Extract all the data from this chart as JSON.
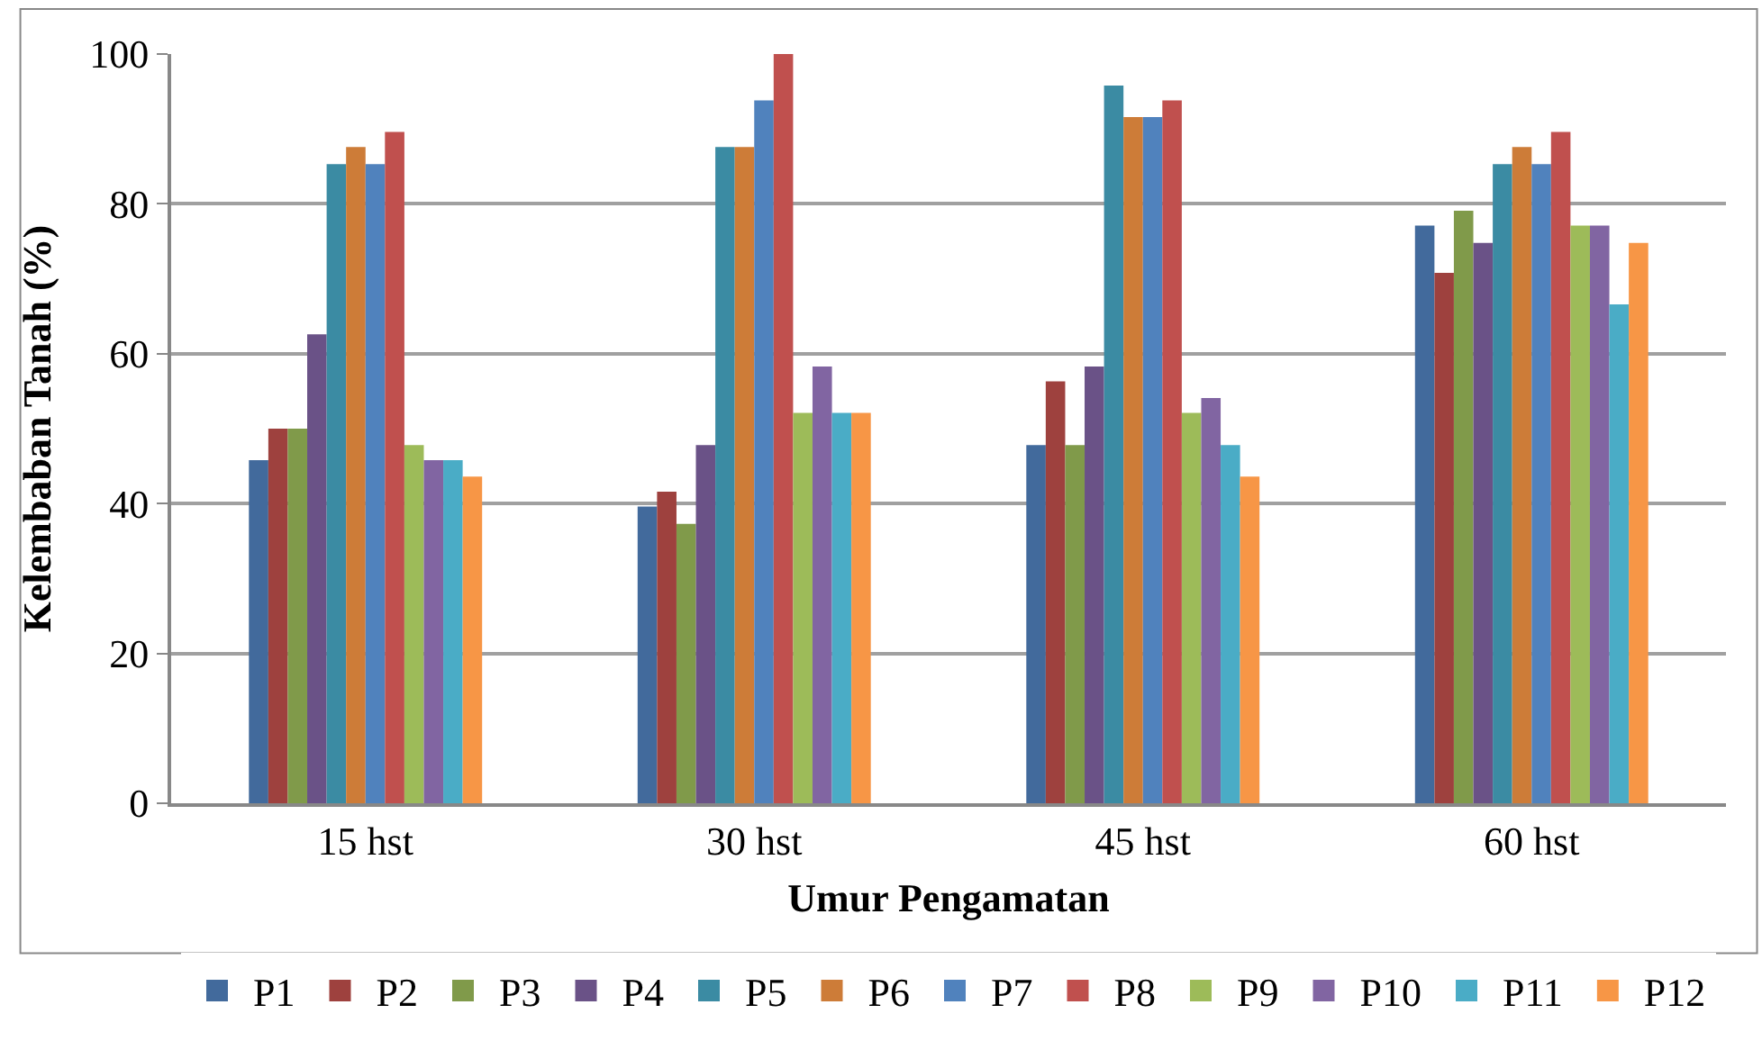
{
  "chart_data": {
    "type": "bar",
    "xlabel": "Umur Pengamatan",
    "ylabel": "Kelembaban Tanah (%)",
    "categories": [
      "15 hst",
      "30 hst",
      "45 hst",
      "60 hst"
    ],
    "series": [
      {
        "name": "P1",
        "color": "#426a9c",
        "values": [
          45.8,
          39.6,
          47.8,
          77.1
        ]
      },
      {
        "name": "P2",
        "color": "#9e413e",
        "values": [
          50,
          41.6,
          56.3,
          70.8
        ]
      },
      {
        "name": "P3",
        "color": "#809a4a",
        "values": [
          50,
          37.3,
          47.8,
          79.1
        ]
      },
      {
        "name": "P4",
        "color": "#6a5287",
        "values": [
          62.6,
          47.8,
          58.3,
          74.8
        ]
      },
      {
        "name": "P5",
        "color": "#3b8ba3",
        "values": [
          85.3,
          87.6,
          95.8,
          85.3
        ]
      },
      {
        "name": "P6",
        "color": "#cd7c38",
        "values": [
          87.6,
          87.6,
          91.6,
          87.6
        ]
      },
      {
        "name": "P7",
        "color": "#5082bd",
        "values": [
          85.3,
          93.8,
          91.6,
          85.3
        ]
      },
      {
        "name": "P8",
        "color": "#c0504e",
        "values": [
          89.6,
          100,
          93.8,
          89.6
        ]
      },
      {
        "name": "P9",
        "color": "#9dbb59",
        "values": [
          47.8,
          52.1,
          52.1,
          77.1
        ]
      },
      {
        "name": "P10",
        "color": "#8165a2",
        "values": [
          45.8,
          58.3,
          54.1,
          77.1
        ]
      },
      {
        "name": "P11",
        "color": "#4aacc6",
        "values": [
          45.8,
          52.1,
          47.8,
          66.6
        ]
      },
      {
        "name": "P12",
        "color": "#f79646",
        "values": [
          43.6,
          52.1,
          43.6,
          74.8
        ]
      }
    ],
    "ylim": [
      0,
      100
    ],
    "yticks": [
      0,
      20,
      40,
      60,
      80,
      100
    ],
    "grid": "y",
    "legend": "bottom"
  }
}
